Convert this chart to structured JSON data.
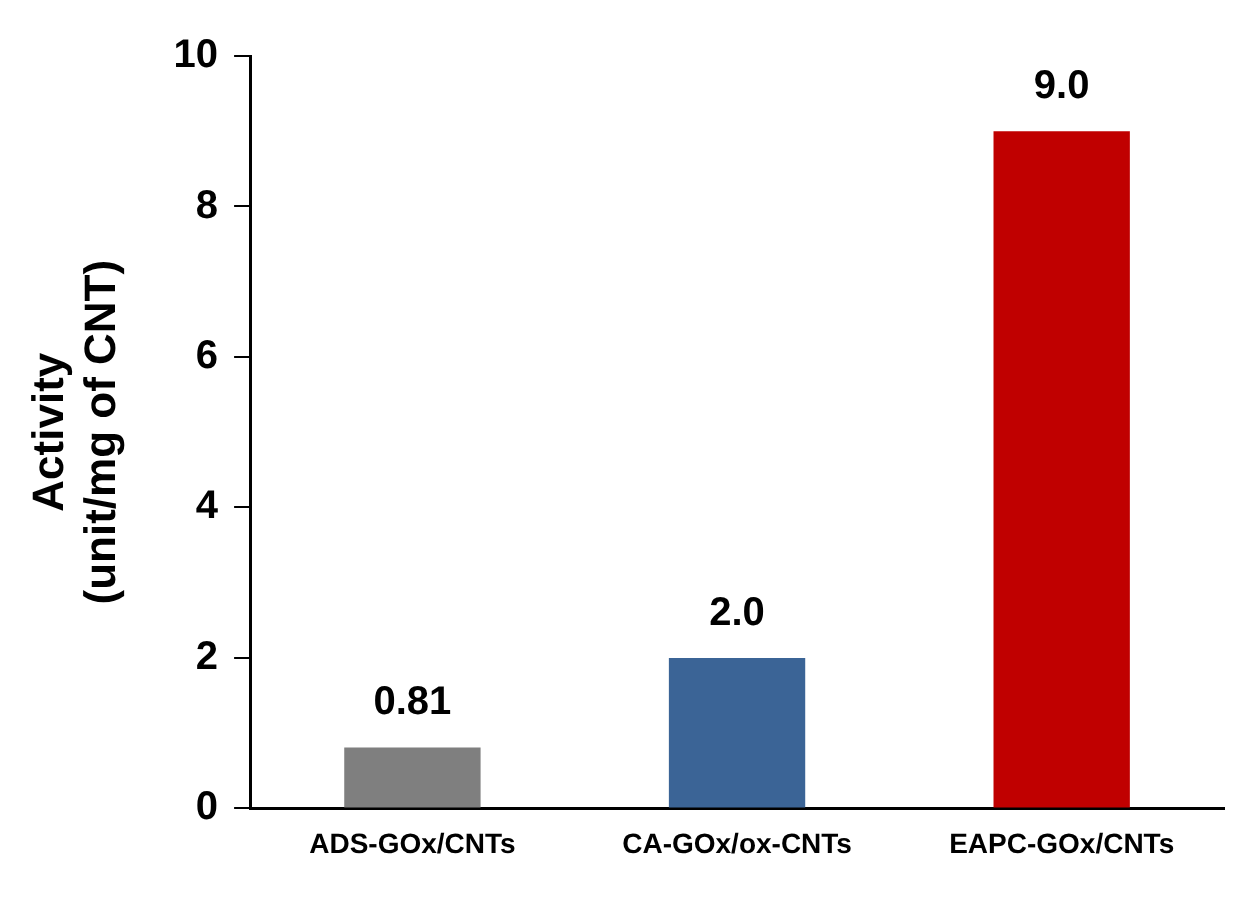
{
  "chart_data": {
    "type": "bar",
    "ylabel": "Activity\n(unit/mg of CNT)",
    "categories": [
      "ADS-GOx/CNTs",
      "CA-GOx/ox-CNTs",
      "EAPC-GOx/CNTs"
    ],
    "values": [
      0.81,
      2.0,
      9.0
    ],
    "colors": [
      "#7f7f7f",
      "#3b6496",
      "#c00000"
    ],
    "value_labels": [
      "0.81",
      "2.0",
      "9.0"
    ],
    "ylim": [
      0,
      10
    ],
    "yticks": [
      0,
      2,
      4,
      6,
      8,
      10
    ],
    "grid": false,
    "legend": false
  }
}
